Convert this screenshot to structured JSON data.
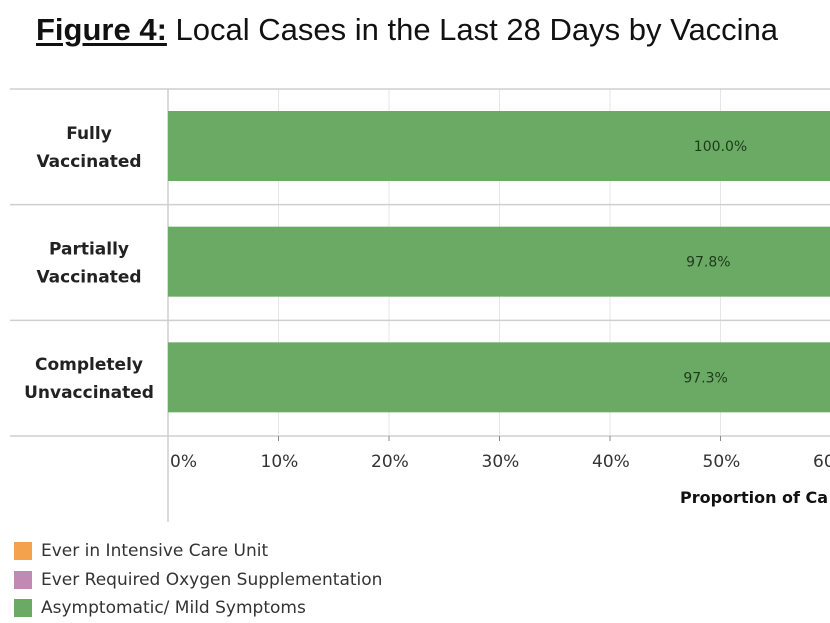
{
  "title": {
    "figure_label": "Figure 4:",
    "text": " Local Cases in the Last 28 Days by Vaccina"
  },
  "colors": {
    "icu": "#f4a24c",
    "oxygen": "#c08ab5",
    "mild": "#6aaa64",
    "grid": "#e6e6e6",
    "divider": "#cfcfcf"
  },
  "legend": [
    {
      "key": "icu",
      "label": "Ever in Intensive Care Unit"
    },
    {
      "key": "oxygen",
      "label": "Ever Required Oxygen Supplementation"
    },
    {
      "key": "mild",
      "label": "Asymptomatic/ Mild Symptoms"
    }
  ],
  "chart_data": {
    "type": "bar",
    "orientation": "horizontal",
    "stacked": true,
    "title": "Figure 4: Local Cases in the Last 28 Days by Vaccina",
    "xlabel": "Proportion of Ca",
    "ylabel": "",
    "xlim": [
      0,
      100
    ],
    "x_ticks": [
      "0%",
      "10%",
      "20%",
      "30%",
      "40%",
      "50%",
      "60%"
    ],
    "x_tick_values": [
      0,
      10,
      20,
      30,
      40,
      50,
      60
    ],
    "categories": [
      {
        "lines": [
          "Fully",
          "Vaccinated"
        ]
      },
      {
        "lines": [
          "Partially",
          "Vaccinated"
        ]
      },
      {
        "lines": [
          "Completely",
          "Unvaccinated"
        ]
      }
    ],
    "series": [
      {
        "name": "Asymptomatic/ Mild Symptoms",
        "key": "mild",
        "values": [
          100.0,
          97.8,
          97.3
        ],
        "labels": [
          "100.0%",
          "97.8%",
          "97.3%"
        ]
      }
    ],
    "grid": true,
    "legend_position": "bottom-left"
  }
}
